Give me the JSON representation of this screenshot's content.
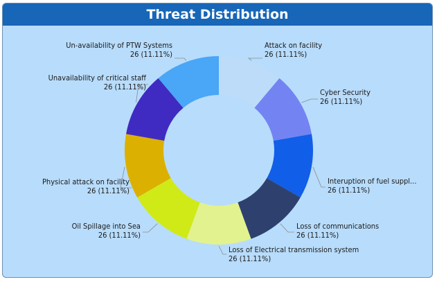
{
  "panel": {
    "title": "Threat Distribution"
  },
  "chart_data": {
    "type": "pie",
    "donut": true,
    "title": "Threat Distribution",
    "legend": "none",
    "slices": [
      {
        "label": "Attack on facility",
        "display_label": "Attack on facility",
        "value": 26,
        "percent": "11.11%",
        "color": "#bcdcf9"
      },
      {
        "label": "Cyber Security",
        "display_label": "Cyber Security",
        "value": 26,
        "percent": "11.11%",
        "color": "#7384f2"
      },
      {
        "label": "Interuption of fuel supply",
        "display_label": "Interuption of fuel suppl...",
        "value": 26,
        "percent": "11.11%",
        "color": "#115ee8"
      },
      {
        "label": "Loss of communications",
        "display_label": "Loss of communications",
        "value": 26,
        "percent": "11.11%",
        "color": "#2e416e"
      },
      {
        "label": "Loss of Electrical transmission system",
        "display_label": "Loss of Electrical transmission system",
        "value": 26,
        "percent": "11.11%",
        "color": "#e2f28e"
      },
      {
        "label": "Oil Spillage into Sea",
        "display_label": "Oil Spillage into Sea",
        "value": 26,
        "percent": "11.11%",
        "color": "#d0ea18"
      },
      {
        "label": "Physical attack on facility",
        "display_label": "Physical attack on facility",
        "value": 26,
        "percent": "11.11%",
        "color": "#dcb000"
      },
      {
        "label": "Unavailability of critical staff",
        "display_label": "Unavailability of critical staff",
        "value": 26,
        "percent": "11.11%",
        "color": "#3f2bc2"
      },
      {
        "label": "Un-availability of PTW Systems",
        "display_label": "Un-availability of PTW Systems",
        "value": 26,
        "percent": "11.11%",
        "color": "#4aa6f6"
      }
    ]
  }
}
